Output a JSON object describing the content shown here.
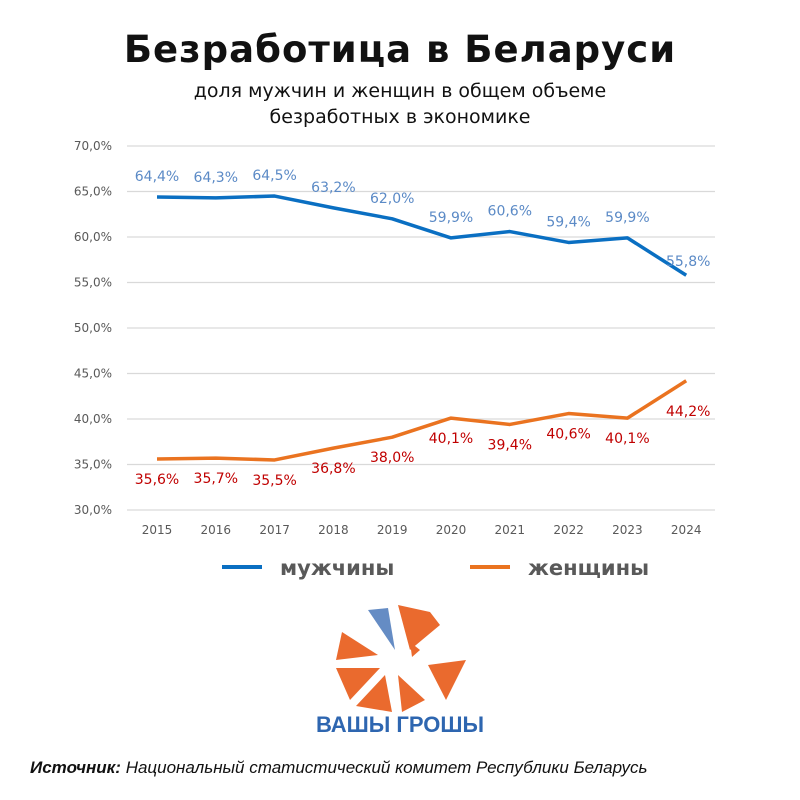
{
  "header": {
    "title": "Безработица в Беларуси",
    "subtitle_line1": "доля мужчин и женщин в общем объеме",
    "subtitle_line2": "безработных в экономике"
  },
  "chart_data": {
    "type": "line",
    "title": "Безработица в Беларуси",
    "categories": [
      "2015",
      "2016",
      "2017",
      "2018",
      "2019",
      "2020",
      "2021",
      "2022",
      "2023",
      "2024"
    ],
    "ylim": [
      30,
      70
    ],
    "yticks": [
      "70,0%",
      "65,0%",
      "60,0%",
      "55,0%",
      "50,0%",
      "45,0%",
      "40,0%",
      "35,0%",
      "30,0%"
    ],
    "ytick_values": [
      70,
      65,
      60,
      55,
      50,
      45,
      40,
      35,
      30
    ],
    "grid": true,
    "legend_position": "bottom",
    "series": [
      {
        "name": "мужчины",
        "color": "#0a6fc2",
        "label_color": "#5b8ac6",
        "values": [
          64.4,
          64.3,
          64.5,
          63.2,
          62.0,
          59.9,
          60.6,
          59.4,
          59.9,
          55.8
        ],
        "labels": [
          "64,4%",
          "64,3%",
          "64,5%",
          "63,2%",
          "62,0%",
          "59,9%",
          "60,6%",
          "59,4%",
          "59,9%",
          "55,8%"
        ]
      },
      {
        "name": "женщины",
        "color": "#ea7320",
        "label_color": "#c00000",
        "values": [
          35.6,
          35.7,
          35.5,
          36.8,
          38.0,
          40.1,
          39.4,
          40.6,
          40.1,
          44.2
        ],
        "labels": [
          "35,6%",
          "35,7%",
          "35,5%",
          "36,8%",
          "38,0%",
          "40,1%",
          "39,4%",
          "40,6%",
          "40,1%",
          "44,2%"
        ]
      }
    ]
  },
  "logo": {
    "text": "ВАШЫ ГРОШЫ",
    "color": "#ea6a2e"
  },
  "source": {
    "label": "Источник:",
    "text": "Национальный статистический комитет Республики Беларусь"
  }
}
